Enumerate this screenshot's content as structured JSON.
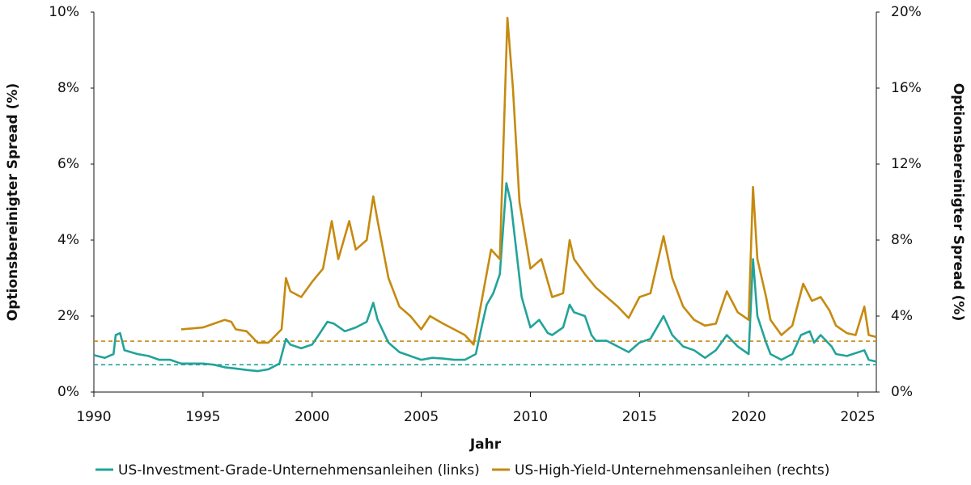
{
  "chart_data": {
    "type": "line",
    "x_label": "Jahr",
    "y_label": "Optionsbereinigter Spread (%)",
    "y2_label": "Optionsbereinigter Spread (%)",
    "xlim": [
      1990,
      2025.85
    ],
    "xticks": [
      1990,
      1995,
      2000,
      2005,
      2010,
      2015,
      2020,
      2025
    ],
    "ylim": [
      0,
      10
    ],
    "yticks": [
      {
        "value": 0,
        "label": "0%"
      },
      {
        "value": 2,
        "label": "2%"
      },
      {
        "value": 4,
        "label": "4%"
      },
      {
        "value": 6,
        "label": "6%"
      },
      {
        "value": 8,
        "label": "8%"
      },
      {
        "value": 10,
        "label": "10%"
      }
    ],
    "y2lim": [
      0,
      20
    ],
    "y2ticks": [
      {
        "value": 0,
        "label": "0%"
      },
      {
        "value": 4,
        "label": "4%"
      },
      {
        "value": 8,
        "label": "8%"
      },
      {
        "value": 12,
        "label": "12%"
      },
      {
        "value": 16,
        "label": "16%"
      },
      {
        "value": 20,
        "label": "20%"
      }
    ],
    "grid": false,
    "legend": "bottom",
    "series": [
      {
        "name": "US-Investment-Grade-Unternehmensanleihen (links)",
        "color": "#22a39a",
        "axis": "y",
        "x": [
          1990,
          1990.5,
          1990.9,
          1991.0,
          1991.2,
          1991.4,
          1992,
          1992.5,
          1993,
          1993.5,
          1994,
          1995,
          1995.5,
          1996,
          1996.5,
          1997,
          1997.5,
          1998,
          1998.5,
          1998.8,
          1999,
          1999.5,
          2000,
          2000.3,
          2000.7,
          2001,
          2001.5,
          2002,
          2002.5,
          2002.8,
          2003,
          2003.5,
          2004,
          2004.5,
          2005,
          2005.5,
          2006,
          2006.5,
          2007,
          2007.5,
          2007.8,
          2008,
          2008.3,
          2008.6,
          2008.9,
          2009.1,
          2009.3,
          2009.6,
          2010,
          2010.4,
          2010.8,
          2011,
          2011.5,
          2011.8,
          2012,
          2012.5,
          2012.8,
          2013,
          2013.5,
          2014,
          2014.5,
          2015,
          2015.5,
          2016.1,
          2016.5,
          2017,
          2017.5,
          2018,
          2018.5,
          2019,
          2019.5,
          2020,
          2020.2,
          2020.4,
          2020.8,
          2021,
          2021.5,
          2022,
          2022.4,
          2022.8,
          2023,
          2023.3,
          2023.8,
          2024,
          2024.5,
          2025.3,
          2025.5,
          2025.85
        ],
        "values": [
          0.97,
          0.9,
          1.0,
          1.5,
          1.55,
          1.1,
          1.0,
          0.95,
          0.85,
          0.85,
          0.75,
          0.75,
          0.72,
          0.65,
          0.62,
          0.58,
          0.55,
          0.6,
          0.75,
          1.4,
          1.25,
          1.15,
          1.25,
          1.5,
          1.85,
          1.8,
          1.6,
          1.7,
          1.85,
          2.35,
          1.9,
          1.3,
          1.05,
          0.95,
          0.85,
          0.9,
          0.88,
          0.85,
          0.85,
          1.0,
          1.8,
          2.3,
          2.6,
          3.1,
          5.5,
          5.0,
          4.0,
          2.5,
          1.7,
          1.9,
          1.55,
          1.5,
          1.7,
          2.3,
          2.1,
          2.0,
          1.5,
          1.35,
          1.35,
          1.2,
          1.05,
          1.3,
          1.4,
          2.0,
          1.5,
          1.2,
          1.1,
          0.9,
          1.1,
          1.5,
          1.2,
          1.0,
          3.5,
          2.0,
          1.3,
          1.0,
          0.85,
          1.0,
          1.5,
          1.6,
          1.3,
          1.5,
          1.2,
          1.0,
          0.95,
          1.1,
          0.85,
          0.8
        ]
      },
      {
        "name": "US-High-Yield-Unternehmensanleihen (rechts)",
        "color": "#c68a10",
        "axis": "y2",
        "x": [
          1994,
          1994.5,
          1995,
          1995.5,
          1996,
          1996.3,
          1996.5,
          1997,
          1997.5,
          1998,
          1998.6,
          1998.8,
          1999,
          1999.5,
          2000,
          2000.5,
          2000.9,
          2001.2,
          2001.7,
          2002,
          2002.5,
          2002.8,
          2003,
          2003.5,
          2004,
          2004.5,
          2005,
          2005.4,
          2006,
          2006.5,
          2007,
          2007.4,
          2007.8,
          2008.2,
          2008.6,
          2008.95,
          2009.2,
          2009.5,
          2010,
          2010.5,
          2011,
          2011.5,
          2011.8,
          2012,
          2012.5,
          2013,
          2013.5,
          2014,
          2014.5,
          2015,
          2015.5,
          2016.1,
          2016.5,
          2017,
          2017.5,
          2018,
          2018.5,
          2019,
          2019.5,
          2020,
          2020.2,
          2020.4,
          2020.8,
          2021,
          2021.5,
          2022,
          2022.5,
          2022.9,
          2023.3,
          2023.7,
          2024,
          2024.5,
          2024.9,
          2025.3,
          2025.5,
          2025.85
        ],
        "values": [
          3.3,
          3.35,
          3.4,
          3.6,
          3.8,
          3.7,
          3.3,
          3.2,
          2.6,
          2.6,
          3.3,
          6.0,
          5.3,
          5.0,
          5.8,
          6.5,
          9.0,
          7.0,
          9.0,
          7.5,
          8.0,
          10.3,
          9.0,
          6.0,
          4.5,
          4.0,
          3.3,
          4.0,
          3.6,
          3.3,
          3.0,
          2.5,
          5.0,
          7.5,
          7.0,
          19.7,
          16.0,
          10.0,
          6.5,
          7.0,
          5.0,
          5.2,
          8.0,
          7.0,
          6.2,
          5.5,
          5.0,
          4.5,
          3.9,
          5.0,
          5.2,
          8.2,
          6.0,
          4.5,
          3.8,
          3.5,
          3.6,
          5.3,
          4.2,
          3.8,
          10.8,
          7.0,
          5.0,
          3.8,
          3.0,
          3.5,
          5.7,
          4.8,
          5.0,
          4.3,
          3.5,
          3.1,
          3.0,
          4.5,
          3.0,
          2.9
        ]
      }
    ],
    "reference_lines": [
      {
        "axis": "y",
        "value": 0.72,
        "color": "#22a39a"
      },
      {
        "axis": "y2",
        "value": 2.68,
        "color": "#c68a10"
      }
    ]
  }
}
